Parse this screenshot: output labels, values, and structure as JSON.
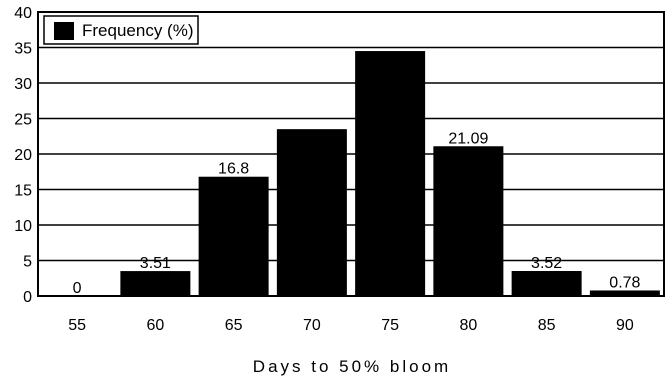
{
  "chart_data": {
    "type": "bar",
    "categories": [
      "55",
      "60",
      "65",
      "70",
      "75",
      "80",
      "85",
      "90"
    ],
    "values": [
      0,
      3.51,
      16.8,
      23.5,
      34.5,
      21.09,
      3.52,
      0.78
    ],
    "data_labels": [
      "0",
      "3.51",
      "16.8",
      "",
      "",
      "21.09",
      "3.52",
      "0.78"
    ],
    "yticks": [
      "0",
      "5",
      "10",
      "15",
      "20",
      "25",
      "30",
      "35",
      "40"
    ],
    "ylim": [
      0,
      40
    ],
    "xlabel": "Days to 50% bloom",
    "ylabel": "",
    "legend": [
      "Frequency (%)"
    ],
    "legend_position": "top-left",
    "grid": "horizontal",
    "bar_color": "#000000"
  }
}
